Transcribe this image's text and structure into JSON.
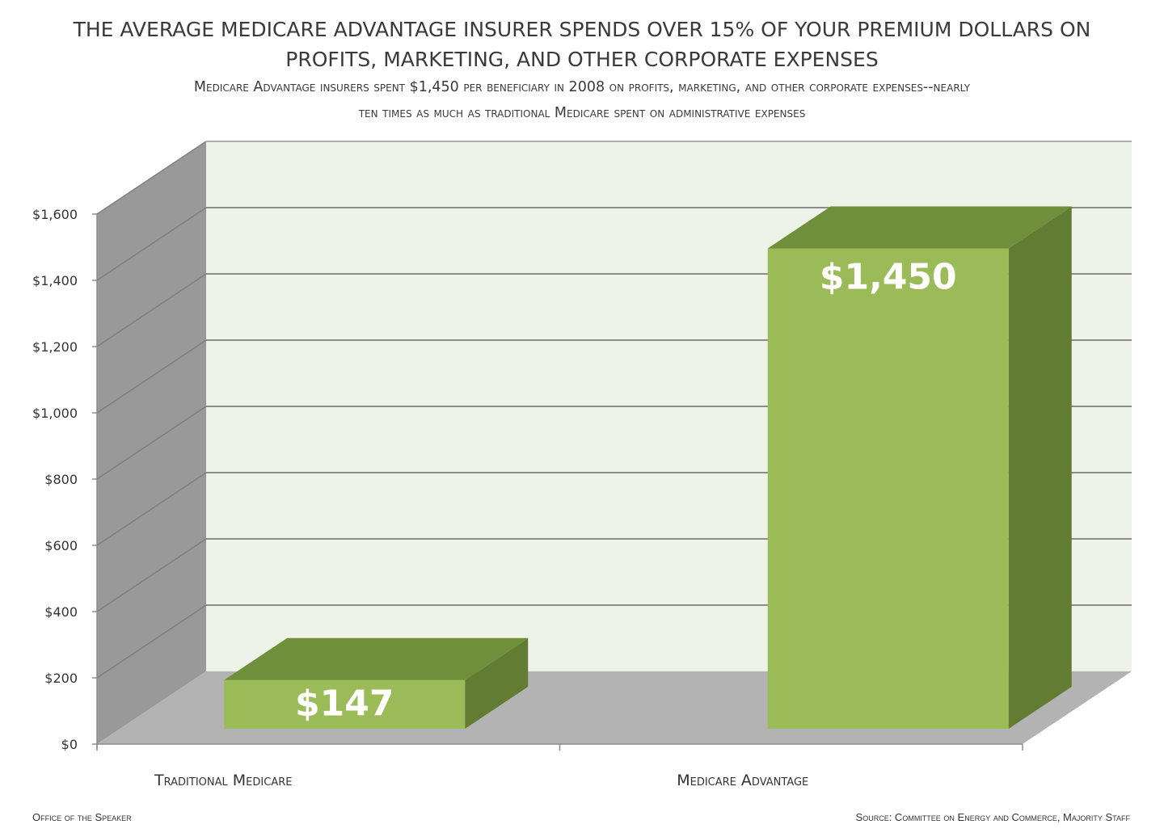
{
  "chart_data": {
    "type": "bar",
    "title_lines": [
      "THE AVERAGE MEDICARE ADVANTAGE INSURER  SPENDS OVER 15% OF YOUR PREMIUM DOLLARS ON",
      "PROFITS, MARKETING, AND OTHER CORPORATE EXPENSES"
    ],
    "subtitle_lines": [
      "Medicare Advantage insurers spent $1,450 per beneficiary in 2008 on profits, marketing, and other corporate expenses--nearly",
      "ten times as much as traditional Medicare spent on administrative expenses"
    ],
    "categories": [
      "Traditional Medicare",
      "Medicare Advantage"
    ],
    "values": [
      147,
      1450
    ],
    "data_labels": [
      "$147",
      "$1,450"
    ],
    "y_ticks": [
      "$0",
      "$200",
      "$400",
      "$600",
      "$800",
      "$1,000",
      "$1,200",
      "$1,400",
      "$1,600"
    ],
    "ylim": [
      0,
      1600
    ],
    "grid": true,
    "colors": {
      "bar_front": "#9bbb59",
      "bar_top": "#6f8f3a",
      "bar_side": "#627c33",
      "back_wall": "#eef3ea",
      "side_wall": "#999999",
      "floor": "#b3b3b3",
      "grid": "#8c8c8c"
    }
  },
  "footer": {
    "left": "Office of the Speaker",
    "right": "Source: Committee on Energy and Commerce, Majority Staff"
  }
}
